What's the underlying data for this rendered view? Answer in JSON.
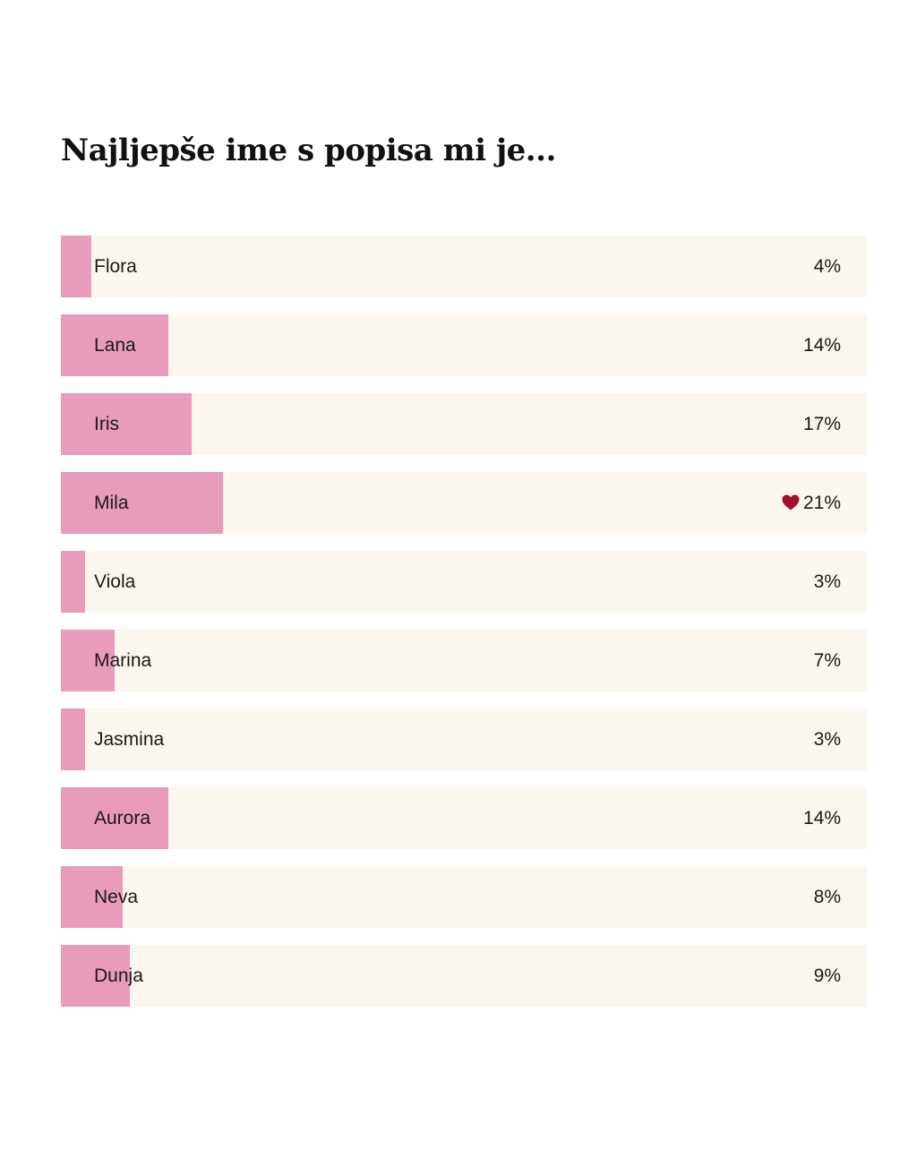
{
  "poll": {
    "question": "Najljepše ime s popisa mi je...",
    "accent_color": "#e99bbc",
    "track_color": "#fbf7ee",
    "heart_color": "#a3122d",
    "options": [
      {
        "label": "Flora",
        "percent": 4,
        "percent_text": "4%",
        "selected": false
      },
      {
        "label": "Lana",
        "percent": 14,
        "percent_text": "14%",
        "selected": false
      },
      {
        "label": "Iris",
        "percent": 17,
        "percent_text": "17%",
        "selected": false
      },
      {
        "label": "Mila",
        "percent": 21,
        "percent_text": "21%",
        "selected": true,
        "selected_icon": "heart-icon"
      },
      {
        "label": "Viola",
        "percent": 3,
        "percent_text": "3%",
        "selected": false
      },
      {
        "label": "Marina",
        "percent": 7,
        "percent_text": "7%",
        "selected": false
      },
      {
        "label": "Jasmina",
        "percent": 3,
        "percent_text": "3%",
        "selected": false
      },
      {
        "label": "Aurora",
        "percent": 14,
        "percent_text": "14%",
        "selected": false
      },
      {
        "label": "Neva",
        "percent": 8,
        "percent_text": "8%",
        "selected": false
      },
      {
        "label": "Dunja",
        "percent": 9,
        "percent_text": "9%",
        "selected": false
      }
    ]
  }
}
